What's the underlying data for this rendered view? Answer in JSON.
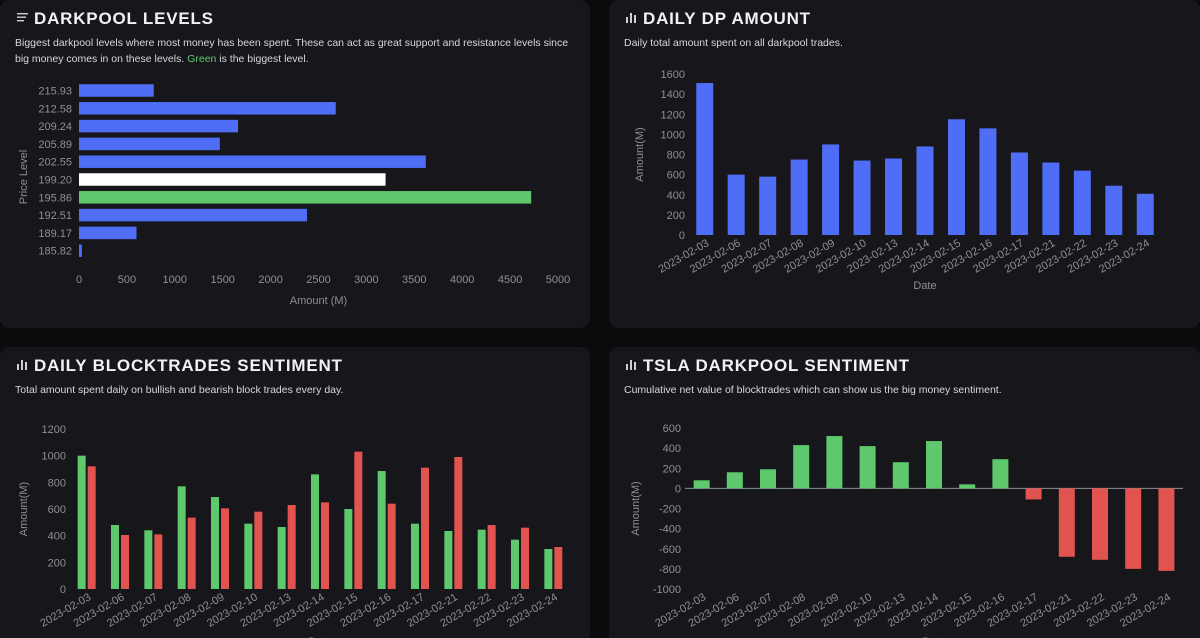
{
  "panels": {
    "levels": {
      "title": "DARKPOOL LEVELS",
      "icon": "list-icon",
      "desc_before": "Biggest darkpool levels where most money has been spent. These can act as great support and resistance levels since big money comes in on these levels. ",
      "desc_highlight": "Green",
      "desc_after": " is the biggest level."
    },
    "daily_dp": {
      "title": "DAILY DP AMOUNT",
      "icon": "bar-chart-icon",
      "desc": "Daily total amount spent on all darkpool trades."
    },
    "blocktrades": {
      "title": "DAILY BLOCKTRADES SENTIMENT",
      "icon": "bar-chart-icon",
      "desc": "Total amount spent daily on bullish and bearish block trades every day."
    },
    "tsla": {
      "title": "TSLA DARKPOOL SENTIMENT",
      "icon": "bar-chart-icon",
      "desc": "Cumulative net value of blocktrades which can show us the big money sentiment."
    }
  },
  "colors": {
    "blue": "#4f6df5",
    "green": "#5ec86d",
    "red": "#e0534f",
    "white": "#ffffff",
    "axis_text": "#8e8e95"
  },
  "chart_data": [
    {
      "type": "bar",
      "orientation": "horizontal",
      "categories": [
        "215.93",
        "212.58",
        "209.24",
        "205.89",
        "202.55",
        "199.20",
        "195.86",
        "192.51",
        "189.17",
        "185.82"
      ],
      "values": [
        780,
        2680,
        1660,
        1470,
        3620,
        3200,
        4720,
        2380,
        600,
        30
      ],
      "bar_colors": [
        "blue",
        "blue",
        "blue",
        "blue",
        "blue",
        "white",
        "green",
        "blue",
        "blue",
        "blue"
      ],
      "xlabel": "Amount (M)",
      "ylabel": "Price Level",
      "xlim": [
        0,
        5000
      ],
      "xticks": [
        0,
        500,
        1000,
        1500,
        2000,
        2500,
        3000,
        3500,
        4000,
        4500,
        5000
      ],
      "grid": false
    },
    {
      "type": "bar",
      "categories": [
        "2023-02-03",
        "2023-02-06",
        "2023-02-07",
        "2023-02-08",
        "2023-02-09",
        "2023-02-10",
        "2023-02-13",
        "2023-02-14",
        "2023-02-15",
        "2023-02-16",
        "2023-02-17",
        "2023-02-21",
        "2023-02-22",
        "2023-02-23",
        "2023-02-24"
      ],
      "values": [
        1510,
        600,
        580,
        750,
        900,
        740,
        760,
        880,
        1150,
        1060,
        820,
        720,
        640,
        490,
        410
      ],
      "xlabel": "Date",
      "ylabel": "Amount(M)",
      "ylim": [
        0,
        1600
      ],
      "yticks": [
        0,
        200,
        400,
        600,
        800,
        1000,
        1200,
        1400,
        1600
      ],
      "grid": false
    },
    {
      "type": "bar",
      "categories": [
        "2023-02-03",
        "2023-02-06",
        "2023-02-07",
        "2023-02-08",
        "2023-02-09",
        "2023-02-10",
        "2023-02-13",
        "2023-02-14",
        "2023-02-15",
        "2023-02-16",
        "2023-02-17",
        "2023-02-21",
        "2023-02-22",
        "2023-02-23",
        "2023-02-24"
      ],
      "series": [
        {
          "color": "green",
          "values": [
            1000,
            480,
            440,
            770,
            690,
            490,
            465,
            860,
            600,
            885,
            490,
            435,
            445,
            370,
            300
          ]
        },
        {
          "color": "red",
          "values": [
            920,
            405,
            410,
            535,
            605,
            580,
            630,
            650,
            1030,
            640,
            910,
            990,
            480,
            460,
            315
          ]
        }
      ],
      "xlabel": "Date",
      "ylabel": "Amount(M)",
      "ylim": [
        0,
        1200
      ],
      "yticks": [
        0,
        200,
        400,
        600,
        800,
        1000,
        1200
      ],
      "grid": false
    },
    {
      "type": "bar",
      "categories": [
        "2023-02-03",
        "2023-02-06",
        "2023-02-07",
        "2023-02-08",
        "2023-02-09",
        "2023-02-10",
        "2023-02-13",
        "2023-02-14",
        "2023-02-15",
        "2023-02-16",
        "2023-02-17",
        "2023-02-21",
        "2023-02-22",
        "2023-02-23",
        "2023-02-24"
      ],
      "values": [
        80,
        160,
        190,
        430,
        520,
        420,
        260,
        470,
        40,
        290,
        -110,
        -680,
        -710,
        -800,
        -820
      ],
      "positive_color": "green",
      "negative_color": "red",
      "xlabel": "Date",
      "ylabel": "Amount(M)",
      "ylim": [
        -1000,
        600
      ],
      "yticks": [
        600,
        400,
        200,
        0,
        -200,
        -400,
        -600,
        -800,
        -1000
      ],
      "grid": false
    }
  ]
}
